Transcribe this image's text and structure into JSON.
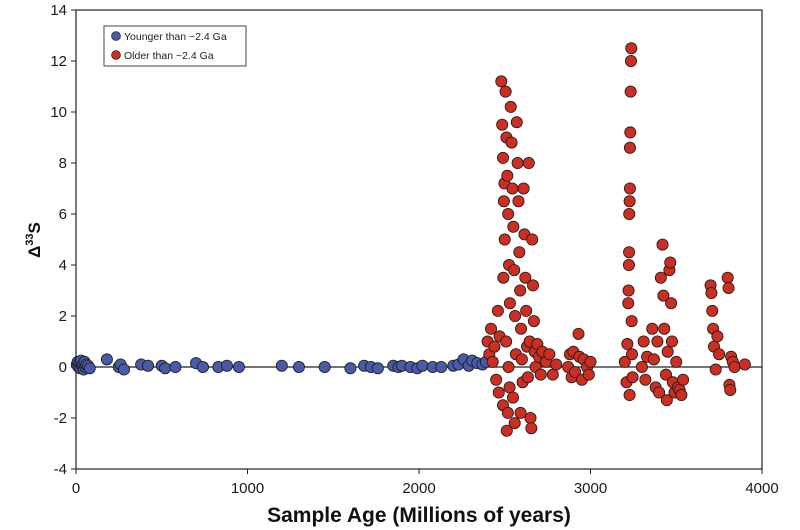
{
  "chart_data": {
    "type": "scatter",
    "title": "",
    "xlabel": "Sample Age (Millions of years)",
    "ylabel_base": "Δ",
    "ylabel_sup": "33",
    "ylabel_tail": "S",
    "xlim": [
      0,
      4000
    ],
    "ylim": [
      -4,
      14
    ],
    "xticks": [
      0,
      1000,
      2000,
      3000,
      4000
    ],
    "yticks": [
      -4,
      -2,
      0,
      2,
      4,
      6,
      8,
      10,
      12,
      14
    ],
    "grid": false,
    "zero_line": true,
    "legend_position": "top-left",
    "series": [
      {
        "name": "Younger than ~2.4 Ga",
        "color": "#4a5aa8",
        "points": [
          [
            5,
            0.1
          ],
          [
            10,
            0.2
          ],
          [
            15,
            0.0
          ],
          [
            20,
            0.15
          ],
          [
            25,
            -0.05
          ],
          [
            30,
            0.25
          ],
          [
            35,
            0.05
          ],
          [
            40,
            0.1
          ],
          [
            45,
            -0.1
          ],
          [
            50,
            0.2
          ],
          [
            55,
            0.0
          ],
          [
            60,
            0.1
          ],
          [
            70,
            0.05
          ],
          [
            80,
            -0.05
          ],
          [
            180,
            0.3
          ],
          [
            250,
            0.0
          ],
          [
            260,
            0.1
          ],
          [
            280,
            -0.1
          ],
          [
            380,
            0.1
          ],
          [
            420,
            0.05
          ],
          [
            500,
            0.05
          ],
          [
            520,
            -0.05
          ],
          [
            580,
            0.0
          ],
          [
            700,
            0.15
          ],
          [
            740,
            0.0
          ],
          [
            830,
            0.0
          ],
          [
            880,
            0.05
          ],
          [
            950,
            0.0
          ],
          [
            1200,
            0.05
          ],
          [
            1300,
            0.0
          ],
          [
            1450,
            0.0
          ],
          [
            1600,
            -0.05
          ],
          [
            1680,
            0.05
          ],
          [
            1720,
            0.0
          ],
          [
            1760,
            -0.05
          ],
          [
            1850,
            0.05
          ],
          [
            1880,
            0.0
          ],
          [
            1900,
            0.05
          ],
          [
            1950,
            0.0
          ],
          [
            1990,
            -0.05
          ],
          [
            2020,
            0.05
          ],
          [
            2080,
            0.0
          ],
          [
            2130,
            0.0
          ],
          [
            2200,
            0.05
          ],
          [
            2230,
            0.1
          ],
          [
            2260,
            0.3
          ],
          [
            2290,
            0.05
          ],
          [
            2310,
            0.25
          ],
          [
            2340,
            0.15
          ],
          [
            2370,
            0.1
          ],
          [
            2390,
            0.2
          ]
        ]
      },
      {
        "name": "Older than ~2.4 Ga",
        "color": "#cc2f22",
        "points": [
          [
            2400,
            1.0
          ],
          [
            2410,
            0.5
          ],
          [
            2420,
            1.5
          ],
          [
            2430,
            0.2
          ],
          [
            2440,
            0.8
          ],
          [
            2450,
            -0.5
          ],
          [
            2460,
            2.2
          ],
          [
            2465,
            -1.0
          ],
          [
            2470,
            1.2
          ],
          [
            2480,
            11.2
          ],
          [
            2485,
            9.5
          ],
          [
            2490,
            8.2
          ],
          [
            2495,
            6.5
          ],
          [
            2500,
            5.0
          ],
          [
            2490,
            -1.5
          ],
          [
            2492,
            3.5
          ],
          [
            2498,
            7.2
          ],
          [
            2505,
            10.8
          ],
          [
            2510,
            9.0
          ],
          [
            2515,
            7.5
          ],
          [
            2520,
            6.0
          ],
          [
            2525,
            4.0
          ],
          [
            2530,
            2.5
          ],
          [
            2512,
            -2.5
          ],
          [
            2518,
            -1.8
          ],
          [
            2508,
            1.0
          ],
          [
            2522,
            0.0
          ],
          [
            2528,
            -0.8
          ],
          [
            2535,
            10.2
          ],
          [
            2540,
            8.8
          ],
          [
            2545,
            7.0
          ],
          [
            2550,
            5.5
          ],
          [
            2555,
            3.8
          ],
          [
            2560,
            2.0
          ],
          [
            2565,
            0.5
          ],
          [
            2548,
            -1.2
          ],
          [
            2558,
            -2.2
          ],
          [
            2570,
            9.6
          ],
          [
            2575,
            8.0
          ],
          [
            2580,
            6.5
          ],
          [
            2585,
            4.5
          ],
          [
            2590,
            3.0
          ],
          [
            2595,
            1.5
          ],
          [
            2600,
            0.3
          ],
          [
            2592,
            -1.8
          ],
          [
            2604,
            -0.6
          ],
          [
            2610,
            7.0
          ],
          [
            2615,
            5.2
          ],
          [
            2620,
            3.5
          ],
          [
            2625,
            2.2
          ],
          [
            2630,
            0.8
          ],
          [
            2635,
            -0.4
          ],
          [
            2640,
            8.0
          ],
          [
            2645,
            1.0
          ],
          [
            2650,
            -2.0
          ],
          [
            2655,
            -2.4
          ],
          [
            2660,
            5.0
          ],
          [
            2665,
            3.2
          ],
          [
            2670,
            1.8
          ],
          [
            2675,
            0.6
          ],
          [
            2680,
            0.0
          ],
          [
            2690,
            0.9
          ],
          [
            2700,
            0.4
          ],
          [
            2710,
            -0.3
          ],
          [
            2720,
            0.6
          ],
          [
            2740,
            0.2
          ],
          [
            2760,
            0.5
          ],
          [
            2780,
            -0.3
          ],
          [
            2800,
            0.1
          ],
          [
            2870,
            0.0
          ],
          [
            2880,
            0.5
          ],
          [
            2890,
            -0.4
          ],
          [
            2900,
            0.6
          ],
          [
            2910,
            -0.2
          ],
          [
            2930,
            1.3
          ],
          [
            2935,
            0.4
          ],
          [
            2950,
            -0.5
          ],
          [
            2960,
            0.3
          ],
          [
            2980,
            0.0
          ],
          [
            2990,
            -0.3
          ],
          [
            3000,
            0.2
          ],
          [
            3200,
            0.2
          ],
          [
            3210,
            -0.6
          ],
          [
            3215,
            0.9
          ],
          [
            3220,
            2.5
          ],
          [
            3222,
            3.0
          ],
          [
            3224,
            4.0
          ],
          [
            3225,
            4.5
          ],
          [
            3226,
            6.0
          ],
          [
            3228,
            6.5
          ],
          [
            3230,
            7.0
          ],
          [
            3230,
            8.6
          ],
          [
            3232,
            9.2
          ],
          [
            3234,
            10.8
          ],
          [
            3236,
            12.0
          ],
          [
            3238,
            12.5
          ],
          [
            3228,
            -1.1
          ],
          [
            3240,
            1.8
          ],
          [
            3242,
            0.5
          ],
          [
            3245,
            -0.4
          ],
          [
            3300,
            0.0
          ],
          [
            3310,
            1.0
          ],
          [
            3320,
            -0.5
          ],
          [
            3330,
            0.4
          ],
          [
            3360,
            1.5
          ],
          [
            3370,
            0.3
          ],
          [
            3380,
            -0.8
          ],
          [
            3390,
            1.0
          ],
          [
            3400,
            -1.0
          ],
          [
            3410,
            3.5
          ],
          [
            3420,
            4.8
          ],
          [
            3425,
            2.8
          ],
          [
            3430,
            1.5
          ],
          [
            3440,
            -0.3
          ],
          [
            3445,
            -1.3
          ],
          [
            3450,
            0.6
          ],
          [
            3460,
            3.8
          ],
          [
            3465,
            4.1
          ],
          [
            3470,
            2.5
          ],
          [
            3475,
            1.0
          ],
          [
            3480,
            -0.6
          ],
          [
            3490,
            -1.0
          ],
          [
            3500,
            0.2
          ],
          [
            3510,
            -0.8
          ],
          [
            3520,
            -0.9
          ],
          [
            3530,
            -1.1
          ],
          [
            3540,
            -0.5
          ],
          [
            3700,
            3.2
          ],
          [
            3705,
            2.9
          ],
          [
            3710,
            2.2
          ],
          [
            3715,
            1.5
          ],
          [
            3720,
            0.8
          ],
          [
            3730,
            -0.1
          ],
          [
            3740,
            1.2
          ],
          [
            3750,
            0.5
          ],
          [
            3800,
            3.5
          ],
          [
            3805,
            3.1
          ],
          [
            3810,
            -0.7
          ],
          [
            3815,
            -0.9
          ],
          [
            3820,
            0.4
          ],
          [
            3830,
            0.2
          ],
          [
            3840,
            0.0
          ],
          [
            3900,
            0.1
          ]
        ]
      }
    ]
  }
}
